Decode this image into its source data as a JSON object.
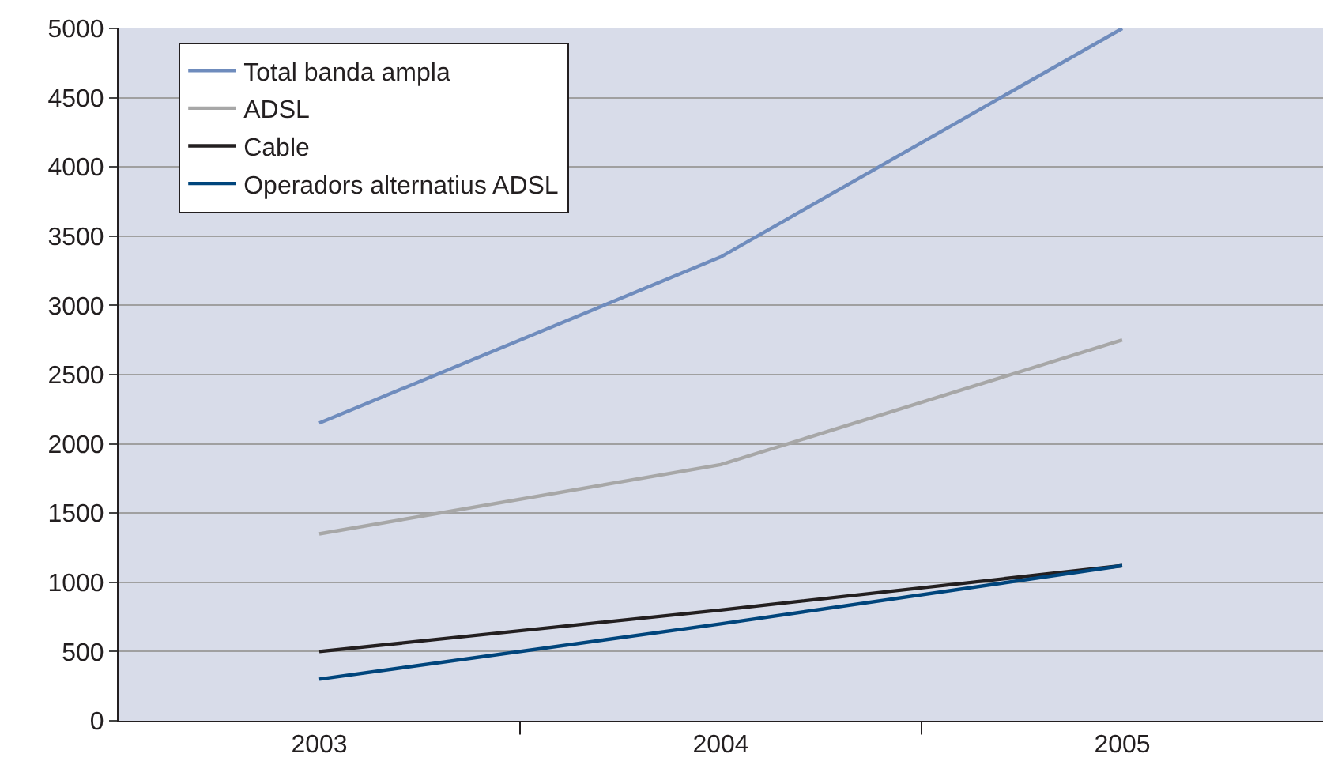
{
  "chart_data": {
    "type": "line",
    "categories": [
      "2003",
      "2004",
      "2005"
    ],
    "series": [
      {
        "name": "Total banda ampla",
        "color": "#6f8cbd",
        "values": [
          2150,
          3350,
          5000
        ]
      },
      {
        "name": "ADSL",
        "color": "#a7a7a7",
        "values": [
          1350,
          1850,
          2750
        ]
      },
      {
        "name": "Cable",
        "color": "#231f20",
        "values": [
          500,
          800,
          1120
        ]
      },
      {
        "name": "Operadors alternatius ADSL",
        "color": "#00457c",
        "values": [
          300,
          700,
          1120
        ]
      }
    ],
    "ylim": [
      0,
      5000
    ],
    "yticks": [
      0,
      500,
      1000,
      1500,
      2000,
      2500,
      3000,
      3500,
      4000,
      4500,
      5000
    ],
    "grid": "y",
    "legend": "top left",
    "marker": "none",
    "line_style": "solid"
  }
}
